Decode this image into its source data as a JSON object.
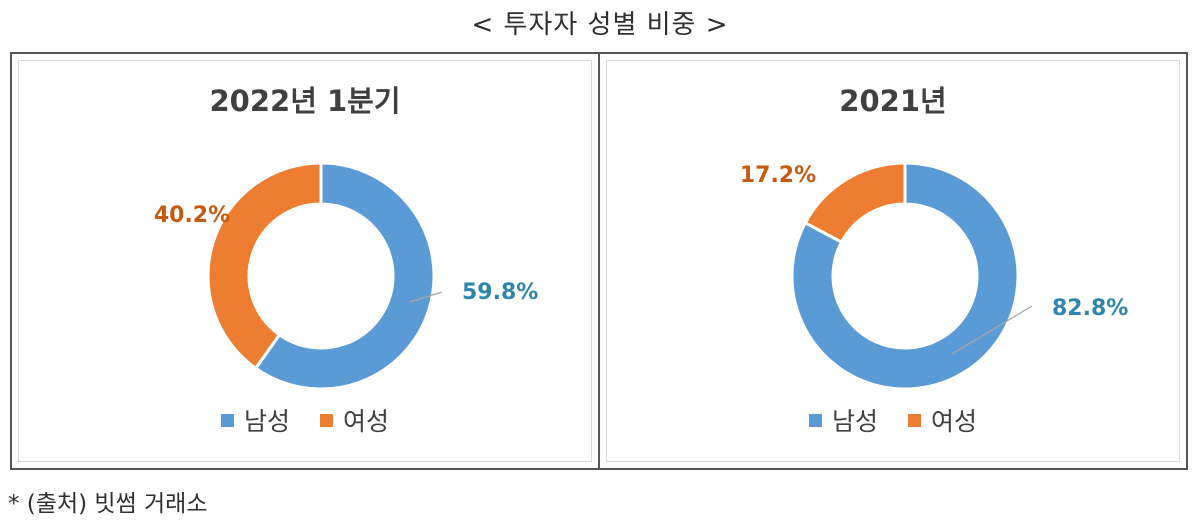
{
  "page": {
    "title": "< 투자자 성별 비중 >",
    "footnote": "* (출처) 빗썸 거래소"
  },
  "colors": {
    "male": "#5b9bd5",
    "female": "#ed7d31",
    "male_label": "#2e86ab",
    "female_label": "#c55a11"
  },
  "legend": {
    "male": "남성",
    "female": "여성"
  },
  "chart_data": [
    {
      "type": "pie",
      "title": "2022년 1분기",
      "categories": [
        "남성",
        "여성"
      ],
      "values": [
        59.8,
        40.2
      ],
      "labels": [
        "59.8%",
        "40.2%"
      ],
      "legend_position": "bottom",
      "donut": true
    },
    {
      "type": "pie",
      "title": "2021년",
      "categories": [
        "남성",
        "여성"
      ],
      "values": [
        82.8,
        17.2
      ],
      "labels": [
        "82.8%",
        "17.2%"
      ],
      "legend_position": "bottom",
      "donut": true
    }
  ]
}
